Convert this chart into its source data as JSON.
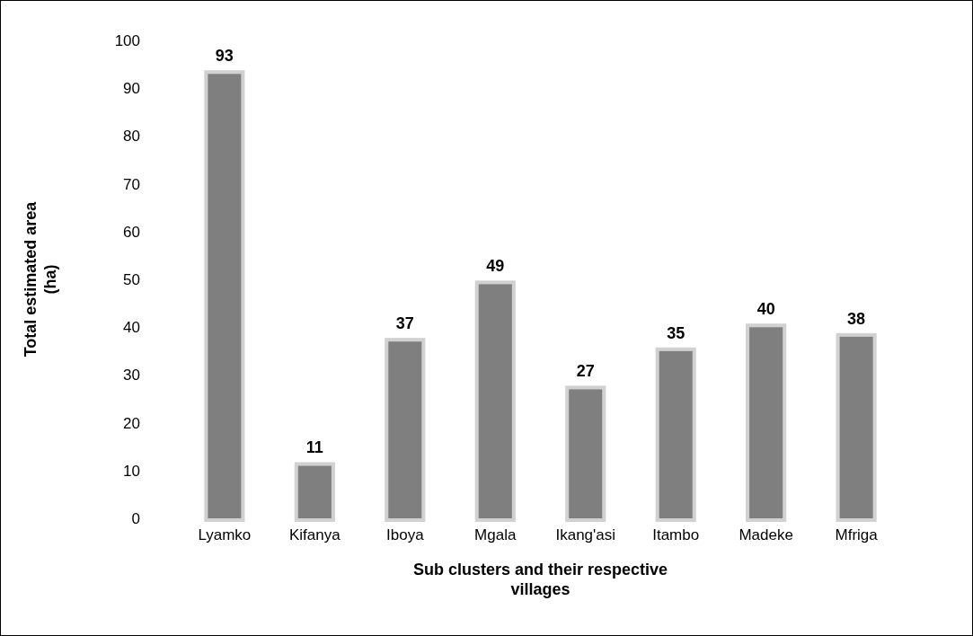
{
  "chart_data": {
    "type": "bar",
    "xlabel": "Sub clusters and their respective villages",
    "ylabel": "Total estimated area (ha)",
    "categories": [
      "Lyamko",
      "Kifanya",
      "Iboya",
      "Mgala",
      "Ikang'asi",
      "Itambo",
      "Madeke",
      "Mfriga"
    ],
    "values": [
      93,
      11,
      37,
      49,
      27,
      35,
      40,
      38
    ],
    "color": "#7f7f7f",
    "ylim": [
      0,
      100
    ],
    "yticks": [
      0,
      10,
      20,
      30,
      40,
      50,
      60,
      70,
      80,
      90,
      100
    ],
    "grid": false,
    "data_labels": true
  }
}
